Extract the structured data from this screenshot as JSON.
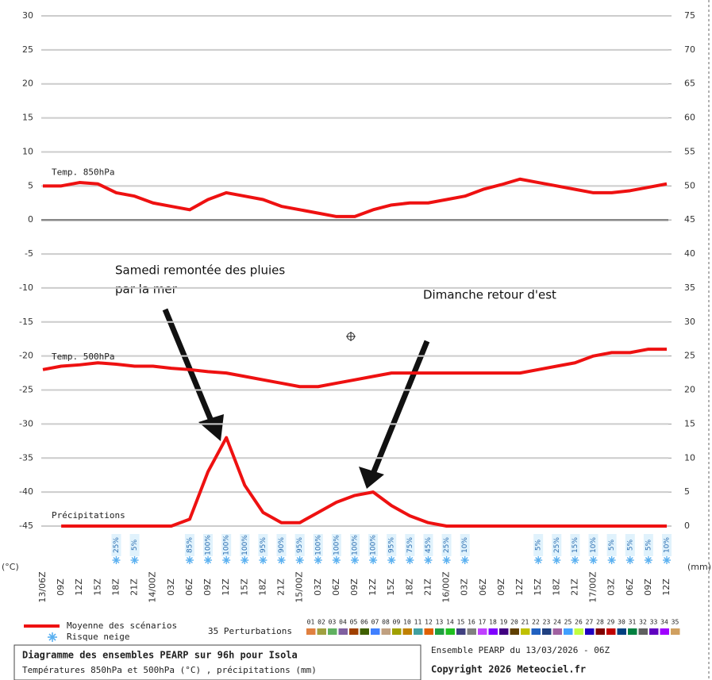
{
  "chart_data": {
    "type": "line",
    "left_unit": "(°C)",
    "right_unit": "(mm)",
    "categories": [
      "13/06Z",
      "09Z",
      "12Z",
      "15Z",
      "18Z",
      "21Z",
      "14/00Z",
      "03Z",
      "06Z",
      "09Z",
      "12Z",
      "15Z",
      "18Z",
      "21Z",
      "15/00Z",
      "03Z",
      "06Z",
      "09Z",
      "12Z",
      "15Z",
      "18Z",
      "21Z",
      "16/00Z",
      "03Z",
      "06Z",
      "09Z",
      "12Z",
      "15Z",
      "18Z",
      "21Z",
      "17/00Z",
      "03Z",
      "06Z",
      "09Z",
      "12Z"
    ],
    "ylim": [
      -45,
      30
    ],
    "yticks": [
      -45,
      -40,
      -35,
      -30,
      -25,
      -20,
      -15,
      -10,
      -5,
      0,
      5,
      10,
      15,
      20,
      25,
      30
    ],
    "y2lim": [
      0,
      75
    ],
    "y2ticks": [
      0,
      5,
      10,
      15,
      20,
      25,
      30,
      35,
      40,
      45,
      50,
      55,
      60,
      65,
      70,
      75
    ],
    "grid": true,
    "series": [
      {
        "name": "Temp. 850hPa",
        "color": "#ee1111",
        "values": [
          5,
          5,
          5.5,
          5.3,
          4,
          3.5,
          2.5,
          2,
          1.5,
          3,
          4,
          3.5,
          3,
          2,
          1.5,
          1,
          0.5,
          0.5,
          1.5,
          2.2,
          2.5,
          2.5,
          3,
          3.5,
          4.5,
          5.2,
          6,
          5.5,
          5,
          4.5,
          4,
          4,
          4.3,
          4.8,
          5.3
        ]
      },
      {
        "name": "Temp. 500hPa",
        "color": "#ee1111",
        "values": [
          -22,
          -21.5,
          -21.3,
          -21,
          -21.2,
          -21.5,
          -21.5,
          -21.8,
          -22,
          -22.3,
          -22.5,
          -23,
          -23.5,
          -24,
          -24.5,
          -24.5,
          -24,
          -23.5,
          -23,
          -22.5,
          -22.5,
          -22.5,
          -22.5,
          -22.5,
          -22.5,
          -22.5,
          -22.5,
          -22,
          -21.5,
          -21,
          -20,
          -19.5,
          -19.5,
          -19,
          -19
        ]
      },
      {
        "name": "Précipitations",
        "color": "#ee1111",
        "axis": "y2",
        "values": [
          null,
          0,
          0,
          0,
          0,
          0,
          0,
          0,
          1,
          8,
          13,
          6,
          2,
          0.5,
          0.5,
          2,
          3.5,
          4.5,
          5,
          3,
          1.5,
          0.5,
          0,
          0,
          0,
          0,
          0,
          0,
          0,
          0,
          0,
          0,
          0,
          0,
          0
        ]
      }
    ],
    "snow_risk": {
      "values": [
        null,
        null,
        null,
        null,
        25,
        5,
        null,
        null,
        85,
        100,
        100,
        100,
        95,
        90,
        95,
        100,
        100,
        100,
        100,
        95,
        75,
        45,
        25,
        10,
        null,
        null,
        null,
        5,
        25,
        15,
        10,
        5,
        5,
        5,
        10
      ],
      "value_labels": [
        null,
        null,
        null,
        null,
        "25%",
        "5%",
        null,
        null,
        "85%",
        "100%",
        "100%",
        "100%",
        "95%",
        "90%",
        "95%",
        "100%",
        "100%",
        "100%",
        "100%",
        "95%",
        "75%",
        "45%",
        "25%",
        "10%",
        null,
        null,
        null,
        "5%",
        "25%",
        "15%",
        "10%",
        "5%",
        "5%",
        "5%",
        "10%"
      ]
    },
    "annotations": [
      "Samedi remontée des pluies",
      "par la mer",
      "Dimanche retour d'est"
    ],
    "legend": {
      "mean": "Moyenne des scénarios",
      "snow": "Risque neige",
      "perturbations_title": "35 Perturbations"
    },
    "perturbations": [
      {
        "name": "01",
        "color": "#e08040"
      },
      {
        "name": "02",
        "color": "#a0a040"
      },
      {
        "name": "03",
        "color": "#60b060"
      },
      {
        "name": "04",
        "color": "#8060a0"
      },
      {
        "name": "05",
        "color": "#a04000"
      },
      {
        "name": "06",
        "color": "#406000"
      },
      {
        "name": "07",
        "color": "#4080ff"
      },
      {
        "name": "08",
        "color": "#c0a080"
      },
      {
        "name": "09",
        "color": "#a0a000"
      },
      {
        "name": "10",
        "color": "#c08000"
      },
      {
        "name": "11",
        "color": "#40a0a0"
      },
      {
        "name": "12",
        "color": "#e06000"
      },
      {
        "name": "13",
        "color": "#20a040"
      },
      {
        "name": "14",
        "color": "#20c020"
      },
      {
        "name": "15",
        "color": "#404080"
      },
      {
        "name": "16",
        "color": "#808080"
      },
      {
        "name": "17",
        "color": "#c040ff"
      },
      {
        "name": "18",
        "color": "#8000ff"
      },
      {
        "name": "19",
        "color": "#400080"
      },
      {
        "name": "20",
        "color": "#604000"
      },
      {
        "name": "21",
        "color": "#c0c000"
      },
      {
        "name": "22",
        "color": "#2060c0"
      },
      {
        "name": "23",
        "color": "#204080"
      },
      {
        "name": "24",
        "color": "#a060a0"
      },
      {
        "name": "25",
        "color": "#40a0ff"
      },
      {
        "name": "26",
        "color": "#c0ff40"
      },
      {
        "name": "27",
        "color": "#2000c0"
      },
      {
        "name": "28",
        "color": "#800000"
      },
      {
        "name": "29",
        "color": "#c00000"
      },
      {
        "name": "30",
        "color": "#004080"
      },
      {
        "name": "31",
        "color": "#008040"
      },
      {
        "name": "32",
        "color": "#606060"
      },
      {
        "name": "33",
        "color": "#6000c0"
      },
      {
        "name": "34",
        "color": "#a000ff"
      },
      {
        "name": "35",
        "color": "#d0a060"
      }
    ],
    "footer": {
      "title": "Diagramme des ensembles PEARP sur 96h pour Isola",
      "subtitle": "Températures 850hPa et 500hPa (°C) , précipitations (mm)",
      "run": "Ensemble PEARP du 13/03/2026 - 06Z",
      "copyright": "Copyright 2026 Meteociel.fr"
    }
  }
}
